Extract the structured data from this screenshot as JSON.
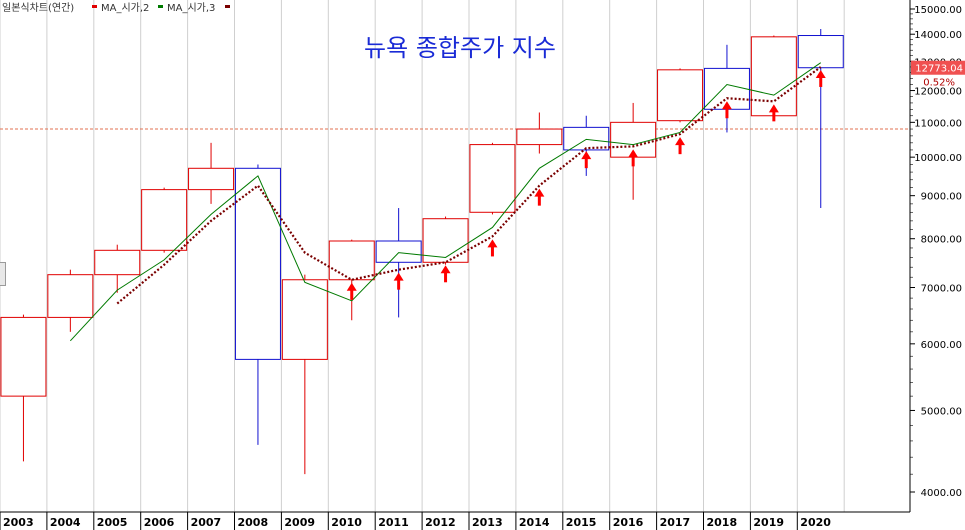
{
  "legend": {
    "main_label": "일본식차트(연간)",
    "ma2_label": "MA_시가,2",
    "ma3_label": "MA_시가,3"
  },
  "colors": {
    "up": "#e00000",
    "down": "#1010d0",
    "ma2": "#007a00",
    "ma3": "#7a0000",
    "arrow": "#ff0000",
    "last_badge": "#f05050",
    "ref_line": "#e07050",
    "title": "#1a2bd6"
  },
  "chart_data": {
    "type": "candlestick",
    "title": "뉴욕 종합주가 지수",
    "y_scale": "log",
    "ylim": [
      3800,
      15500
    ],
    "y_ticks": [
      "4000.00",
      "5000.00",
      "6000.00",
      "7000.00",
      "8000.00",
      "9000.00",
      "10000.00",
      "11000.00",
      "12000.00",
      "13000.00",
      "14000.00",
      "15000.00"
    ],
    "y_tick_values": [
      4000,
      5000,
      6000,
      7000,
      8000,
      9000,
      10000,
      11000,
      12000,
      13000,
      14000,
      15000
    ],
    "categories": [
      "2003",
      "2004",
      "2005",
      "2006",
      "2007",
      "2008",
      "2009",
      "2010",
      "2011",
      "2012",
      "2013",
      "2014",
      "2015",
      "2016",
      "2017",
      "2018",
      "2019",
      "2020"
    ],
    "candles": [
      {
        "year": "2003",
        "open": 5200,
        "high": 6500,
        "low": 4350,
        "close": 6450
      },
      {
        "year": "2004",
        "open": 6450,
        "high": 7350,
        "low": 6200,
        "close": 7250
      },
      {
        "year": "2005",
        "open": 7250,
        "high": 7870,
        "low": 6900,
        "close": 7750
      },
      {
        "year": "2006",
        "open": 7750,
        "high": 9200,
        "low": 7700,
        "close": 9150
      },
      {
        "year": "2007",
        "open": 9150,
        "high": 10400,
        "low": 8800,
        "close": 9700
      },
      {
        "year": "2008",
        "open": 9700,
        "high": 9800,
        "low": 4550,
        "close": 5750
      },
      {
        "year": "2009",
        "open": 5750,
        "high": 7250,
        "low": 4200,
        "close": 7150
      },
      {
        "year": "2010",
        "open": 7150,
        "high": 7980,
        "low": 6400,
        "close": 7950
      },
      {
        "year": "2011",
        "open": 7950,
        "high": 8700,
        "low": 6450,
        "close": 7500
      },
      {
        "year": "2012",
        "open": 7500,
        "high": 8500,
        "low": 7450,
        "close": 8450
      },
      {
        "year": "2013",
        "open": 8600,
        "high": 10400,
        "low": 8550,
        "close": 10350
      },
      {
        "year": "2014",
        "open": 10350,
        "high": 11300,
        "low": 10100,
        "close": 10800
      },
      {
        "year": "2015",
        "open": 10850,
        "high": 11200,
        "low": 9500,
        "close": 10200
      },
      {
        "year": "2016",
        "open": 10000,
        "high": 11600,
        "low": 8900,
        "close": 11000
      },
      {
        "year": "2017",
        "open": 11050,
        "high": 12750,
        "low": 11000,
        "close": 12700
      },
      {
        "year": "2018",
        "open": 12750,
        "high": 13600,
        "low": 10700,
        "close": 11400
      },
      {
        "year": "2019",
        "open": 11200,
        "high": 13950,
        "low": 11100,
        "close": 13900
      },
      {
        "year": "2020",
        "open": 13950,
        "high": 14200,
        "low": 8700,
        "close": 12773.04
      }
    ],
    "ma2": [
      null,
      6050,
      6950,
      7550,
      8550,
      9500,
      7100,
      6750,
      7700,
      7600,
      8250,
      9700,
      10500,
      10350,
      10700,
      12200,
      11850,
      12950
    ],
    "ma3": [
      null,
      null,
      6700,
      7450,
      8400,
      9250,
      7700,
      7150,
      7350,
      7500,
      8050,
      9250,
      10250,
      10300,
      10650,
      11750,
      11650,
      12800
    ],
    "arrow_years": [
      "2010",
      "2011",
      "2012",
      "2013",
      "2014",
      "2015",
      "2016",
      "2017",
      "2018",
      "2019",
      "2020"
    ],
    "reference_line": 10800,
    "last_value_label": "12773.04",
    "last_change_label": "0.52%"
  }
}
